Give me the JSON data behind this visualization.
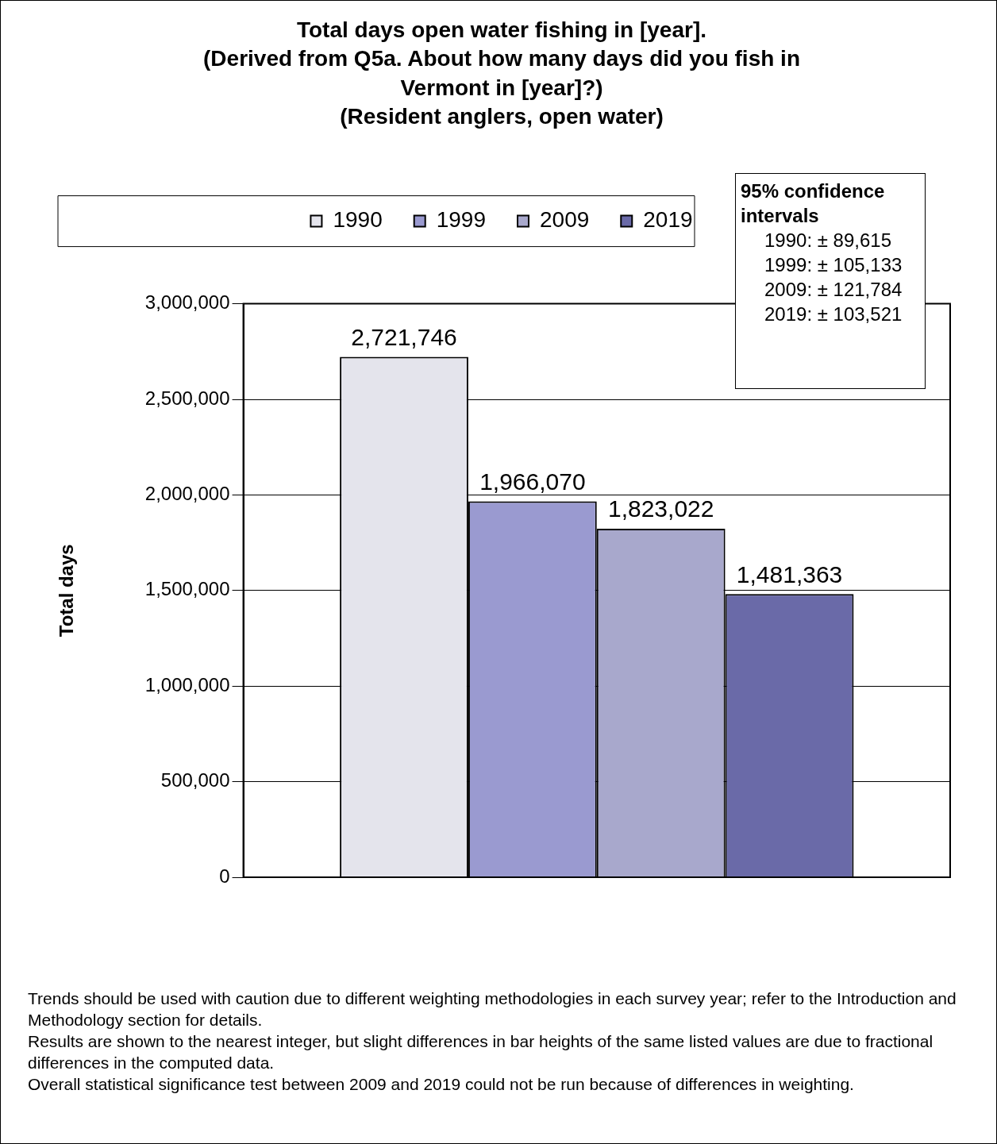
{
  "chart_data": {
    "type": "bar",
    "title": "Total days open water fishing in [year].\n(Derived from Q5a. About how many days did you fish in\nVermont in [year]?)\n(Resident anglers, open water)",
    "ylabel": "Total days",
    "categories": [
      null
    ],
    "series": [
      {
        "name": "1990",
        "color": "#e4e4ec",
        "values": [
          2721746
        ],
        "value_labels": [
          "2,721,746"
        ]
      },
      {
        "name": "1999",
        "color": "#9a9ad0",
        "values": [
          1966070
        ],
        "value_labels": [
          "1,966,070"
        ]
      },
      {
        "name": "2009",
        "color": "#a8a8cc",
        "values": [
          1823022
        ],
        "value_labels": [
          "1,823,022"
        ]
      },
      {
        "name": "2019",
        "color": "#6a6aa8",
        "values": [
          1481363
        ],
        "value_labels": [
          "1,481,363"
        ]
      }
    ],
    "ylim": [
      0,
      3000000
    ],
    "yticks": [
      {
        "value": 0,
        "label": "0"
      },
      {
        "value": 500000,
        "label": "500,000"
      },
      {
        "value": 1000000,
        "label": "1,000,000"
      },
      {
        "value": 1500000,
        "label": "1,500,000"
      },
      {
        "value": 2000000,
        "label": "2,000,000"
      },
      {
        "value": 2500000,
        "label": "2,500,000"
      },
      {
        "value": 3000000,
        "label": "3,000,000"
      }
    ],
    "grid": "y",
    "legend": "top",
    "annotations": [
      "95% confidence intervals\n1990: ± 89,615\n1999: ± 105,133\n2009: ± 121,784\n2019: ± 103,521",
      "Trends should be used with caution due to different weighting methodologies in each survey year; refer to the Introduction and Methodology section for details.",
      "Results are shown to the nearest integer, but slight differences in bar heights of the same listed values are due to fractional differences in the computed data.",
      "Overall statistical significance test between 2009 and 2019 could not be run because of differences in weighting."
    ]
  }
}
